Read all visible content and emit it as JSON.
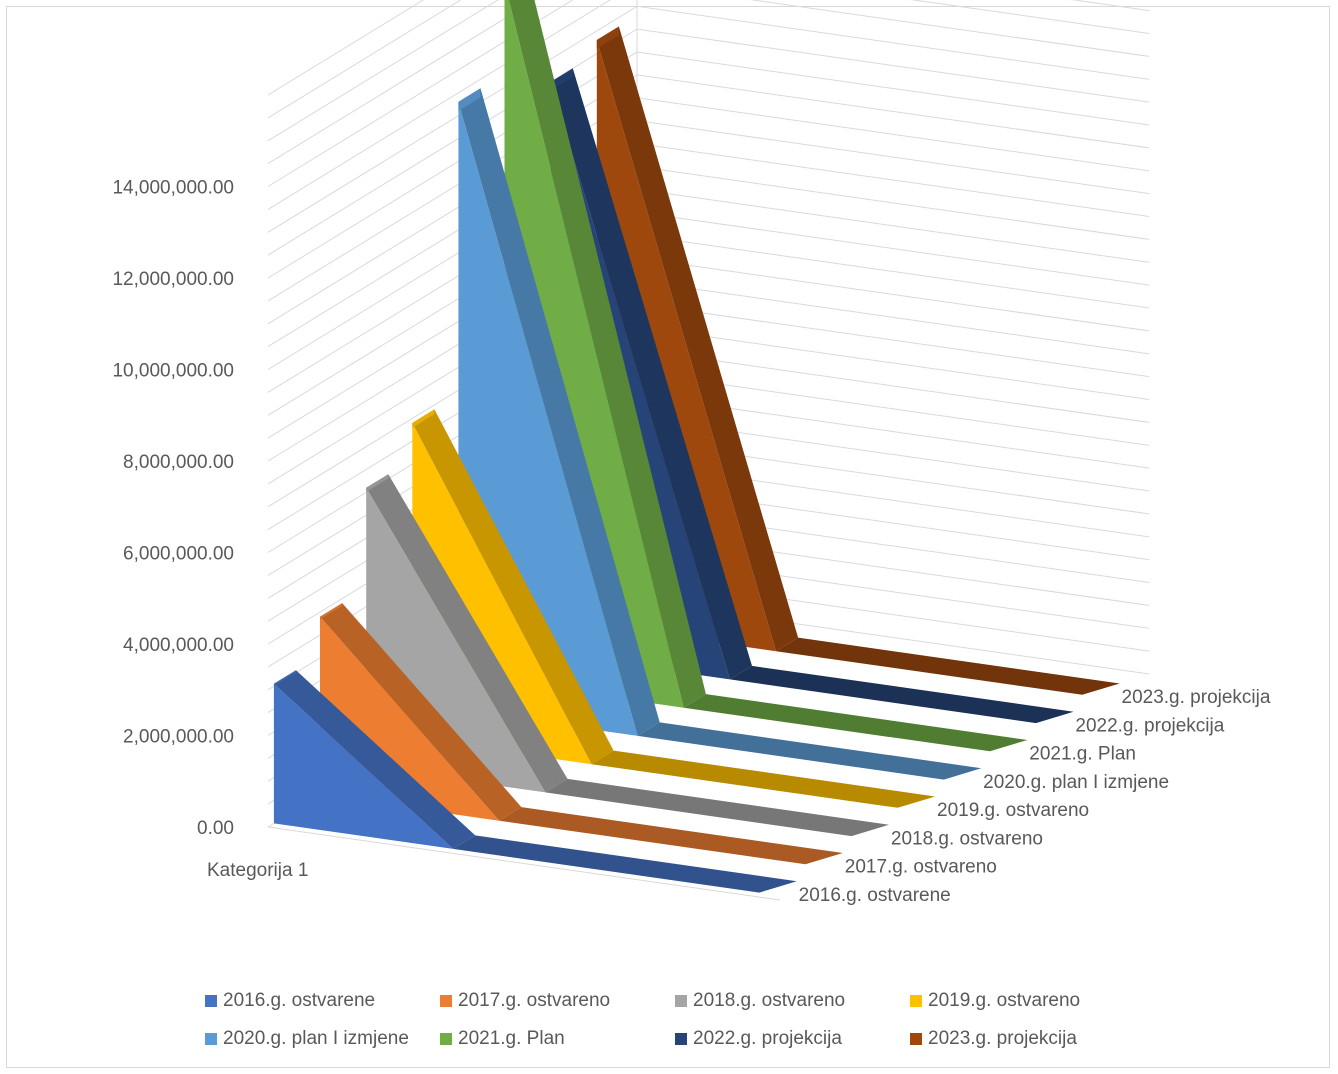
{
  "chart_data": {
    "type": "area",
    "view": "3d",
    "categories": [
      "Kategorija 1"
    ],
    "series": [
      {
        "name": "2016.g. ostvarene",
        "values": [
          3050000
        ],
        "color": "#4472c4"
      },
      {
        "name": "2017.g. ostvareno",
        "values": [
          3900000
        ],
        "color": "#ed7d31"
      },
      {
        "name": "2018.g. ostvareno",
        "values": [
          6100000
        ],
        "color": "#a5a5a5"
      },
      {
        "name": "2019.g. ostvareno",
        "values": [
          6900000
        ],
        "color": "#ffc000"
      },
      {
        "name": "2020.g. plan I izmjene",
        "values": [
          13300000
        ],
        "color": "#5b9bd5"
      },
      {
        "name": "2021.g. Plan",
        "values": [
          15300000
        ],
        "color": "#70ad47"
      },
      {
        "name": "2022.g. projekcija",
        "values": [
          12500000
        ],
        "color": "#264478"
      },
      {
        "name": "2023.g. projekcija",
        "values": [
          12800000
        ],
        "color": "#9e480e"
      }
    ],
    "y_ticks": [
      "0.00",
      "2,000,000.00",
      "4,000,000.00",
      "6,000,000.00",
      "8,000,000.00",
      "10,000,000.00",
      "12,000,000.00",
      "14,000,000.00"
    ],
    "ylim": [
      0,
      16000000
    ],
    "grid": true,
    "legend_position": "bottom"
  }
}
